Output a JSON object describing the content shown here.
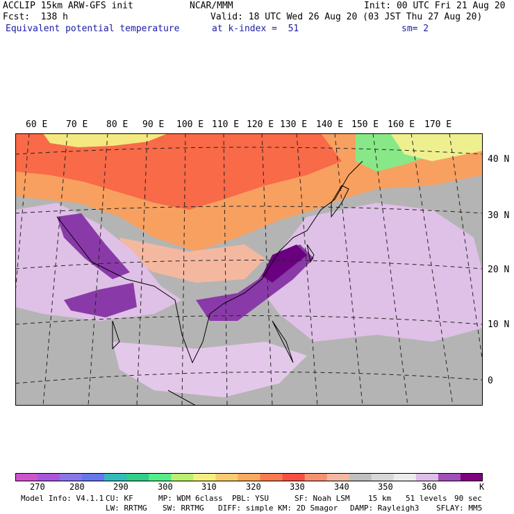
{
  "header": {
    "line1_left": "ACCLIP 15km ARW-GFS init",
    "line1_center": "NCAR/MMM",
    "line1_right": "Init: 00 UTC Fri 21 Aug 20",
    "line2_left": "Fcst:  138 h",
    "line2_right": "Valid: 18 UTC Wed 26 Aug 20 (03 JST Thu 27 Aug 20)",
    "line3_field": "Equivalent potential temperature",
    "line3_level": "at k-index =  51",
    "line3_smooth": "sm= 2"
  },
  "map": {
    "lon_labels": [
      "60 E",
      "70 E",
      "80 E",
      "90 E",
      "100 E",
      "110 E",
      "120 E",
      "130 E",
      "140 E",
      "150 E",
      "160 E",
      "170 E"
    ],
    "lat_labels": [
      "40 N",
      "30 N",
      "20 N",
      "10 N",
      "0"
    ]
  },
  "colorbar": {
    "colors": [
      "#cc55cc",
      "#aa55dd",
      "#8877e8",
      "#6677ee",
      "#33bbbb",
      "#33cc88",
      "#55ee88",
      "#bbf070",
      "#f4f080",
      "#f8cc70",
      "#fbaa60",
      "#f87a50",
      "#f85040",
      "#f89070",
      "#f4b8a0",
      "#c0c0c0",
      "#d8d8d8",
      "#ececec",
      "#e0bce8",
      "#a050b8",
      "#800080"
    ],
    "tick_labels": [
      "270",
      "280",
      "290",
      "300",
      "310",
      "320",
      "330",
      "340",
      "350",
      "360"
    ],
    "unit": "K"
  },
  "footer": {
    "model_info": "Model Info: V4.1.1",
    "cu": "CU: KF",
    "mp": "MP: WDM 6class",
    "pbl": "PBL: YSU",
    "sf": "SF: Noah LSM",
    "res": "15 km",
    "levels": "51 levels",
    "dt": "90 sec",
    "lw": "LW: RRTMG",
    "sw": "SW: RRTMG",
    "diff": "DIFF: simple KM: 2D Smagor",
    "damp": "DAMP: Rayleigh3",
    "sflay": "SFLAY: MM5"
  }
}
